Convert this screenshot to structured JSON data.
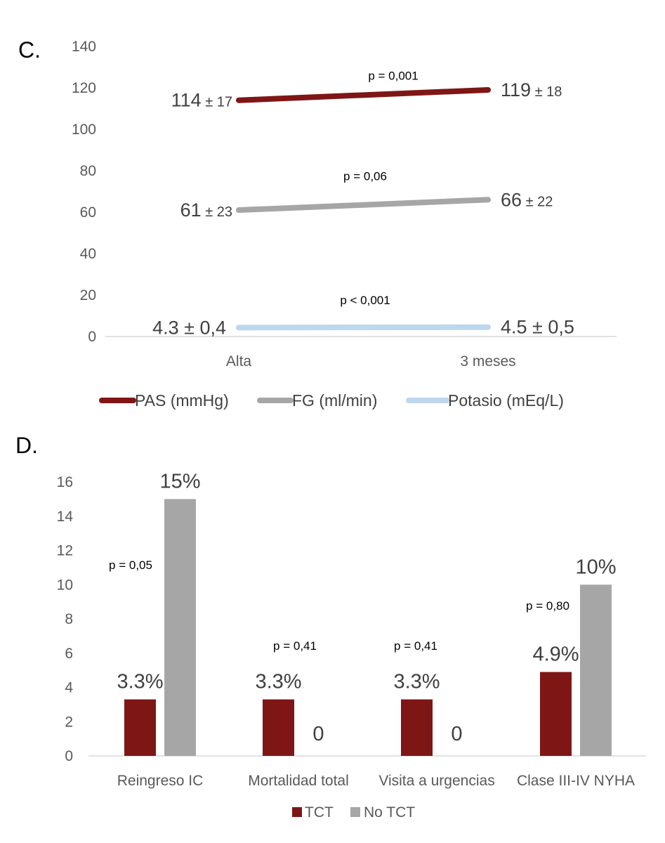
{
  "chart_data": [
    {
      "panel": "C.",
      "type": "line",
      "categories": [
        "Alta",
        "3 meses"
      ],
      "ylim": [
        0,
        140
      ],
      "yticks": [
        0,
        20,
        40,
        60,
        80,
        100,
        120,
        140
      ],
      "series": [
        {
          "name": "PAS (mmHg)",
          "color": "#7F1616",
          "values": [
            114,
            119
          ],
          "labels": [
            {
              "main": "114",
              "sd": "± 17"
            },
            {
              "main": "119",
              "sd": "± 18"
            }
          ],
          "p": "p = 0,001"
        },
        {
          "name": "FG (ml/min)",
          "color": "#A6A6A6",
          "values": [
            61,
            66
          ],
          "labels": [
            {
              "main": "61",
              "sd": "± 23"
            },
            {
              "main": "66",
              "sd": "± 22"
            }
          ],
          "p": "p = 0,06"
        },
        {
          "name": "Potasio (mEq/L)",
          "color": "#BDD7EE",
          "values": [
            4.3,
            4.5
          ],
          "labels": [
            {
              "main": "4.3 ± 0,4",
              "sd": ""
            },
            {
              "main": "4.5 ± 0,5",
              "sd": ""
            }
          ],
          "p": "p < 0,001"
        }
      ]
    },
    {
      "panel": "D.",
      "type": "bar",
      "categories": [
        "Reingreso IC",
        "Mortalidad total",
        "Visita a urgencias",
        "Clase III-IV NYHA"
      ],
      "ylim": [
        0,
        16
      ],
      "yticks": [
        0,
        2,
        4,
        6,
        8,
        10,
        12,
        14,
        16
      ],
      "series": [
        {
          "name": "TCT",
          "color": "#7F1616",
          "values": [
            3.3,
            3.3,
            3.3,
            4.9
          ],
          "labels": [
            "3.3%",
            "3.3%",
            "3.3%",
            "4.9%"
          ]
        },
        {
          "name": "No TCT",
          "color": "#A6A6A6",
          "values": [
            15,
            0,
            0,
            10
          ],
          "labels": [
            "15%",
            "0",
            "0",
            "10%"
          ]
        }
      ],
      "pvalues": [
        "p = 0,05",
        "p = 0,41",
        "p = 0,41",
        "p = 0,80"
      ]
    }
  ]
}
